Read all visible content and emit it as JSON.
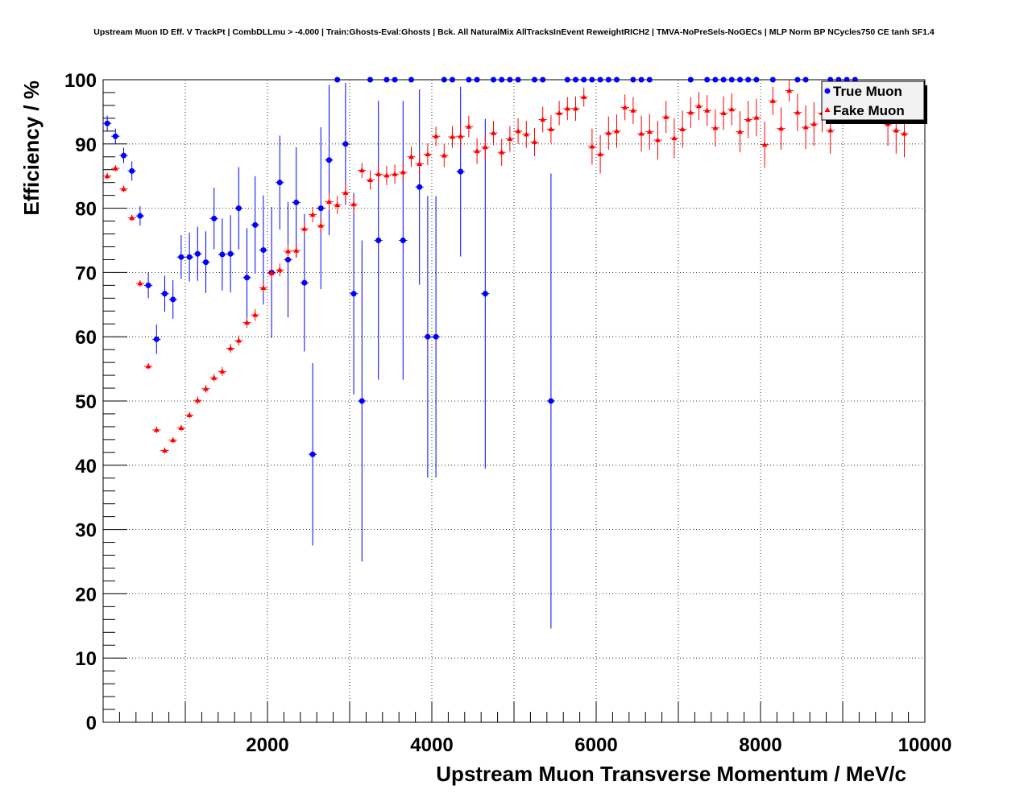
{
  "chart_data": {
    "type": "scatter",
    "title": "Upstream Muon ID Eff. V TrackPt | CombDLLmu > -4.000 | Train:Ghosts-Eval:Ghosts | Bck. All NaturalMix AllTracksInEvent ReweightRICH2 | TMVA-NoPreSels-NoGECs | MLP Norm BP NCycles750 CE tanh SF1.4",
    "xlabel": "Upstream Muon Transverse Momentum / MeV/c",
    "ylabel": "Efficiency / %",
    "xlim": [
      0,
      10000
    ],
    "ylim": [
      0,
      100
    ],
    "x_ticks": [
      2000,
      4000,
      6000,
      8000,
      10000
    ],
    "y_ticks": [
      0,
      10,
      20,
      30,
      40,
      50,
      60,
      70,
      80,
      90,
      100
    ],
    "grid": true,
    "legend_position": "top-right",
    "series": [
      {
        "name": "True Muon",
        "color": "#0000ff",
        "marker": "circle",
        "points": [
          [
            50,
            93.2,
            1.2
          ],
          [
            150,
            91.2,
            1.2
          ],
          [
            250,
            88.2,
            1.2
          ],
          [
            350,
            85.8,
            1.5
          ],
          [
            450,
            78.8,
            1.5
          ],
          [
            550,
            68.0,
            2.0
          ],
          [
            650,
            59.6,
            2.3
          ],
          [
            750,
            66.7,
            2.8
          ],
          [
            850,
            65.8,
            3.0
          ],
          [
            950,
            72.4,
            3.4
          ],
          [
            1050,
            72.4,
            3.8
          ],
          [
            1150,
            72.9,
            4.2
          ],
          [
            1250,
            71.6,
            4.8
          ],
          [
            1350,
            78.4,
            4.8
          ],
          [
            1450,
            72.8,
            5.6
          ],
          [
            1550,
            72.9,
            6.0
          ],
          [
            1650,
            80.0,
            6.4
          ],
          [
            1750,
            69.2,
            7.7
          ],
          [
            1850,
            77.4,
            7.6
          ],
          [
            1950,
            73.5,
            8.5
          ],
          [
            2050,
            70.0,
            10.2
          ],
          [
            2150,
            84.0,
            7.3
          ],
          [
            2250,
            72.0,
            9.0
          ],
          [
            2350,
            80.9,
            8.6
          ],
          [
            2450,
            68.4,
            10.7
          ],
          [
            2550,
            41.7,
            14.2
          ],
          [
            2650,
            80.0,
            12.6
          ],
          [
            2750,
            87.5,
            11.7
          ],
          [
            2850,
            100,
            0
          ],
          [
            2950,
            90.0,
            9.5
          ],
          [
            3050,
            66.7,
            15.7
          ],
          [
            3150,
            50.0,
            25.0
          ],
          [
            3250,
            100,
            0
          ],
          [
            3350,
            75.0,
            21.7
          ],
          [
            3450,
            100,
            0
          ],
          [
            3550,
            100,
            0
          ],
          [
            3650,
            75.0,
            21.7
          ],
          [
            3750,
            100,
            0
          ],
          [
            3850,
            83.3,
            15.2
          ],
          [
            3950,
            60.0,
            21.9
          ],
          [
            4050,
            60.0,
            21.9
          ],
          [
            4150,
            100,
            0
          ],
          [
            4250,
            100,
            0
          ],
          [
            4350,
            85.7,
            13.2
          ],
          [
            4450,
            100,
            0
          ],
          [
            4550,
            100,
            0
          ],
          [
            4650,
            66.7,
            27.2
          ],
          [
            4750,
            100,
            0
          ],
          [
            4850,
            100,
            0
          ],
          [
            4950,
            100,
            0
          ],
          [
            5050,
            100,
            0
          ],
          [
            5250,
            100,
            0
          ],
          [
            5350,
            100,
            0
          ],
          [
            5450,
            50.0,
            35.4
          ],
          [
            5650,
            100,
            0
          ],
          [
            5750,
            100,
            0
          ],
          [
            5850,
            100,
            0
          ],
          [
            5950,
            100,
            0
          ],
          [
            6050,
            100,
            0
          ],
          [
            6150,
            100,
            0
          ],
          [
            6250,
            100,
            0
          ],
          [
            6450,
            100,
            0
          ],
          [
            6550,
            100,
            0
          ],
          [
            6650,
            100,
            0
          ],
          [
            7150,
            100,
            0
          ],
          [
            7350,
            100,
            0
          ],
          [
            7450,
            100,
            0
          ],
          [
            7550,
            100,
            0
          ],
          [
            7650,
            100,
            0
          ],
          [
            7750,
            100,
            0
          ],
          [
            7850,
            100,
            0
          ],
          [
            7950,
            100,
            0
          ],
          [
            8150,
            100,
            0
          ],
          [
            8450,
            100,
            0
          ],
          [
            8550,
            100,
            0
          ],
          [
            8850,
            100,
            0
          ],
          [
            8950,
            100,
            0
          ],
          [
            9050,
            100,
            0
          ],
          [
            9150,
            100,
            0
          ]
        ]
      },
      {
        "name": "Fake Muon",
        "color": "#ff0000",
        "marker": "triangle",
        "points": [
          [
            50,
            85.0,
            0.5
          ],
          [
            150,
            86.2,
            0.5
          ],
          [
            250,
            83.0,
            0.5
          ],
          [
            350,
            78.5,
            0.5
          ],
          [
            450,
            68.3,
            0.5
          ],
          [
            550,
            55.4,
            0.5
          ],
          [
            650,
            45.5,
            0.5
          ],
          [
            750,
            42.3,
            0.5
          ],
          [
            850,
            43.9,
            0.5
          ],
          [
            950,
            45.8,
            0.5
          ],
          [
            1050,
            47.8,
            0.5
          ],
          [
            1150,
            50.1,
            0.6
          ],
          [
            1250,
            51.9,
            0.6
          ],
          [
            1350,
            53.6,
            0.6
          ],
          [
            1450,
            54.6,
            0.7
          ],
          [
            1550,
            58.2,
            0.7
          ],
          [
            1650,
            59.4,
            0.8
          ],
          [
            1750,
            62.2,
            0.8
          ],
          [
            1850,
            63.4,
            0.9
          ],
          [
            1950,
            67.6,
            0.9
          ],
          [
            2050,
            69.9,
            1.0
          ],
          [
            2150,
            70.4,
            1.0
          ],
          [
            2250,
            73.3,
            1.1
          ],
          [
            2350,
            73.4,
            1.1
          ],
          [
            2450,
            76.8,
            1.2
          ],
          [
            2550,
            79.0,
            1.2
          ],
          [
            2650,
            77.3,
            1.3
          ],
          [
            2750,
            81.0,
            1.3
          ],
          [
            2850,
            80.5,
            1.4
          ],
          [
            2950,
            82.4,
            1.4
          ],
          [
            3050,
            80.6,
            1.5
          ],
          [
            3150,
            85.9,
            1.2
          ],
          [
            3250,
            84.4,
            1.5
          ],
          [
            3350,
            85.3,
            1.5
          ],
          [
            3450,
            85.1,
            1.5
          ],
          [
            3550,
            85.3,
            1.5
          ],
          [
            3650,
            85.6,
            1.5
          ],
          [
            3750,
            88.0,
            1.6
          ],
          [
            3850,
            86.9,
            1.7
          ],
          [
            3950,
            88.4,
            1.7
          ],
          [
            4050,
            91.2,
            1.5
          ],
          [
            4150,
            88.2,
            1.8
          ],
          [
            4250,
            91.1,
            1.7
          ],
          [
            4350,
            91.2,
            1.8
          ],
          [
            4450,
            92.7,
            1.7
          ],
          [
            4550,
            88.9,
            2.0
          ],
          [
            4650,
            89.5,
            2.0
          ],
          [
            4750,
            91.7,
            1.9
          ],
          [
            4850,
            88.7,
            2.1
          ],
          [
            4950,
            90.8,
            2.0
          ],
          [
            5050,
            92.0,
            2.0
          ],
          [
            5150,
            91.5,
            2.1
          ],
          [
            5250,
            90.3,
            2.2
          ],
          [
            5350,
            93.8,
            2.0
          ],
          [
            5450,
            92.3,
            2.2
          ],
          [
            5550,
            94.8,
            1.9
          ],
          [
            5650,
            95.5,
            1.8
          ],
          [
            5750,
            95.5,
            1.9
          ],
          [
            5850,
            97.3,
            1.5
          ],
          [
            5950,
            89.6,
            2.8
          ],
          [
            6050,
            88.4,
            3.0
          ],
          [
            6150,
            91.7,
            2.6
          ],
          [
            6250,
            92.0,
            2.6
          ],
          [
            6350,
            95.7,
            2.0
          ],
          [
            6450,
            95.2,
            2.1
          ],
          [
            6550,
            91.6,
            2.8
          ],
          [
            6650,
            91.9,
            2.8
          ],
          [
            6750,
            90.6,
            3.0
          ],
          [
            6850,
            94.2,
            2.5
          ],
          [
            6950,
            90.9,
            3.1
          ],
          [
            7050,
            92.3,
            2.9
          ],
          [
            7150,
            94.9,
            2.4
          ],
          [
            7250,
            95.9,
            2.2
          ],
          [
            7350,
            95.2,
            2.4
          ],
          [
            7450,
            92.5,
            2.9
          ],
          [
            7550,
            94.8,
            2.6
          ],
          [
            7650,
            95.4,
            2.5
          ],
          [
            7750,
            91.9,
            3.2
          ],
          [
            7850,
            93.8,
            2.9
          ],
          [
            7950,
            94.1,
            2.9
          ],
          [
            8050,
            89.9,
            3.6
          ],
          [
            8150,
            96.7,
            2.2
          ],
          [
            8250,
            92.4,
            3.3
          ],
          [
            8350,
            98.3,
            1.7
          ],
          [
            8450,
            94.9,
            2.9
          ],
          [
            8550,
            92.6,
            3.4
          ],
          [
            8650,
            93.1,
            3.4
          ],
          [
            8750,
            94.8,
            3.0
          ],
          [
            8850,
            92.1,
            3.6
          ],
          [
            9550,
            93.1,
            3.4
          ],
          [
            9650,
            92.1,
            3.6
          ],
          [
            9750,
            91.6,
            3.7
          ]
        ]
      }
    ]
  }
}
